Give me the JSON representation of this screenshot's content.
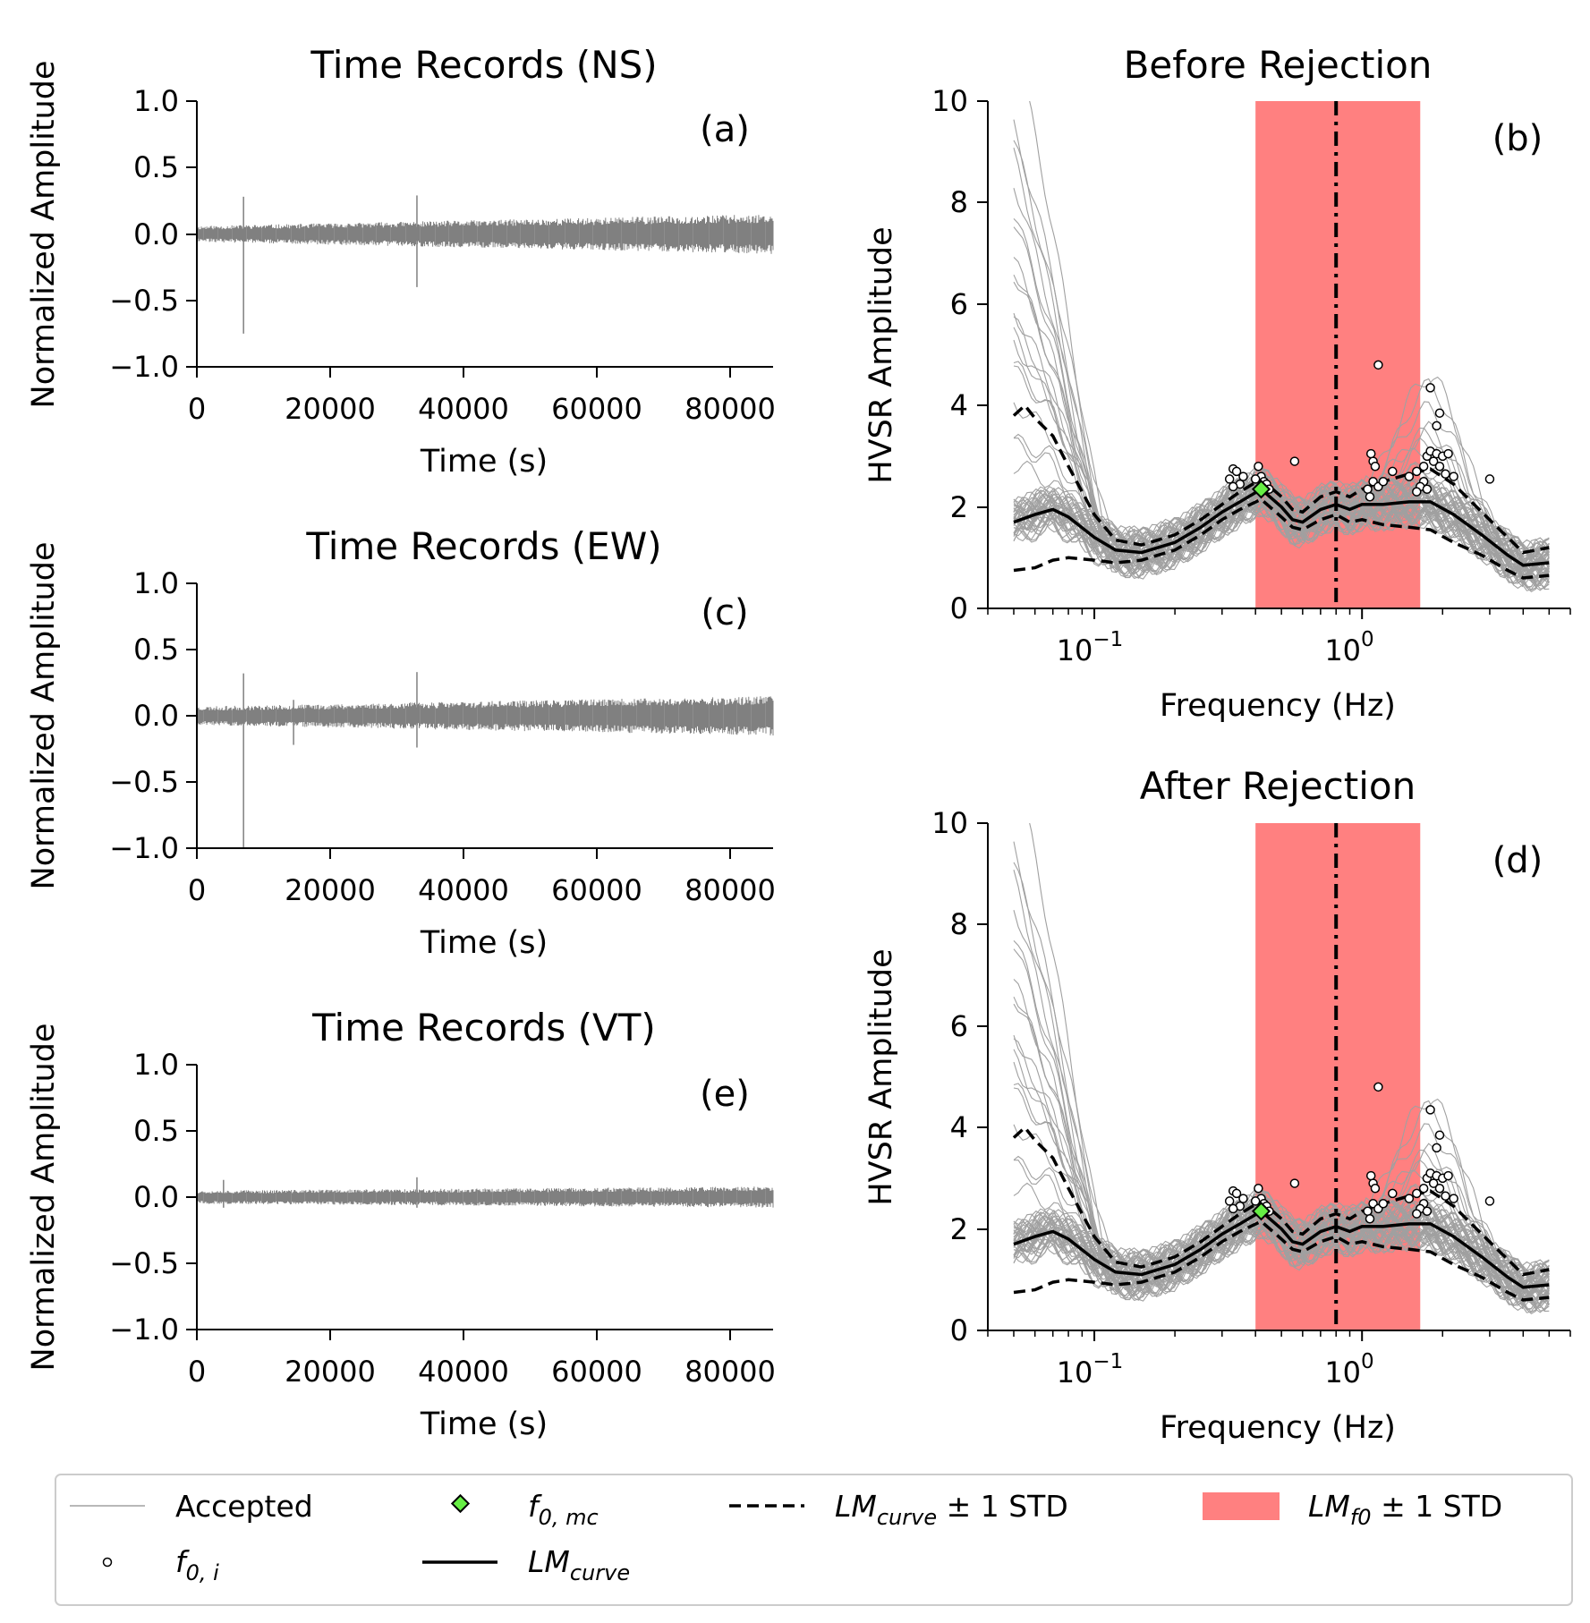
{
  "chart_data": [
    {
      "id": "a",
      "type": "line",
      "title": "Time Records (NS)",
      "panel_label": "(a)",
      "xlabel": "Time (s)",
      "ylabel": "Normalized Amplitude",
      "xlim": [
        0,
        86400
      ],
      "ylim": [
        -1.0,
        1.0
      ],
      "x_ticks": [
        "0",
        "20000",
        "40000",
        "60000",
        "80000"
      ],
      "y_ticks": [
        "1.0",
        "0.5",
        "0.0",
        "−0.5",
        "−1.0"
      ],
      "noise_band_start": 0.06,
      "noise_band_end": 0.15,
      "spikes": [
        {
          "t": 7000,
          "max": 0.28,
          "min": -0.75
        },
        {
          "t": 33000,
          "max": 0.29,
          "min": -0.4
        }
      ]
    },
    {
      "id": "c",
      "type": "line",
      "title": "Time Records (EW)",
      "panel_label": "(c)",
      "xlabel": "Time (s)",
      "ylabel": "Normalized Amplitude",
      "xlim": [
        0,
        86400
      ],
      "ylim": [
        -1.0,
        1.0
      ],
      "x_ticks": [
        "0",
        "20000",
        "40000",
        "60000",
        "80000"
      ],
      "y_ticks": [
        "1.0",
        "0.5",
        "0.0",
        "−0.5",
        "−1.0"
      ],
      "noise_band_start": 0.07,
      "noise_band_end": 0.15,
      "spikes": [
        {
          "t": 7000,
          "max": 0.32,
          "min": -1.0
        },
        {
          "t": 33000,
          "max": 0.33,
          "min": -0.24
        },
        {
          "t": 14500,
          "max": 0.12,
          "min": -0.22
        }
      ]
    },
    {
      "id": "e",
      "type": "line",
      "title": "Time Records (VT)",
      "panel_label": "(e)",
      "xlabel": "Time (s)",
      "ylabel": "Normalized Amplitude",
      "xlim": [
        0,
        86400
      ],
      "ylim": [
        -1.0,
        1.0
      ],
      "x_ticks": [
        "0",
        "20000",
        "40000",
        "60000",
        "80000"
      ],
      "y_ticks": [
        "1.0",
        "0.5",
        "0.0",
        "−0.5",
        "−1.0"
      ],
      "noise_band_start": 0.05,
      "noise_band_end": 0.08,
      "spikes": [
        {
          "t": 4000,
          "max": 0.13,
          "min": -0.08
        },
        {
          "t": 33000,
          "max": 0.15,
          "min": -0.08
        }
      ]
    },
    {
      "id": "b",
      "type": "line",
      "title": "Before Rejection",
      "panel_label": "(b)",
      "xlabel": "Frequency (Hz)",
      "ylabel": "HVSR Amplitude",
      "x_scale": "log",
      "xlim": [
        0.04,
        6.0
      ],
      "ylim": [
        0,
        10
      ],
      "y_ticks": [
        "0",
        "2",
        "4",
        "6",
        "8",
        "10"
      ],
      "x_tick_bases": [
        "10",
        "10"
      ],
      "x_tick_exponents": [
        "−1",
        "0"
      ],
      "lm_f0": 0.8,
      "lm_f0_std_range": [
        0.4,
        1.65
      ],
      "f0_mc": {
        "f": 0.42,
        "amp": 2.35
      },
      "lm_curve": [
        [
          0.05,
          1.7
        ],
        [
          0.06,
          1.85
        ],
        [
          0.07,
          1.95
        ],
        [
          0.08,
          1.8
        ],
        [
          0.1,
          1.4
        ],
        [
          0.12,
          1.15
        ],
        [
          0.15,
          1.1
        ],
        [
          0.2,
          1.3
        ],
        [
          0.25,
          1.6
        ],
        [
          0.3,
          1.9
        ],
        [
          0.35,
          2.1
        ],
        [
          0.42,
          2.35
        ],
        [
          0.5,
          2.0
        ],
        [
          0.55,
          1.75
        ],
        [
          0.6,
          1.7
        ],
        [
          0.7,
          1.95
        ],
        [
          0.8,
          2.05
        ],
        [
          0.9,
          1.95
        ],
        [
          1.0,
          2.05
        ],
        [
          1.2,
          2.05
        ],
        [
          1.5,
          2.1
        ],
        [
          1.8,
          2.1
        ],
        [
          2.2,
          1.85
        ],
        [
          2.8,
          1.45
        ],
        [
          3.5,
          1.05
        ],
        [
          4.0,
          0.85
        ],
        [
          5.0,
          0.9
        ]
      ],
      "lm_curve_plus": [
        [
          0.05,
          3.8
        ],
        [
          0.055,
          4.0
        ],
        [
          0.06,
          3.75
        ],
        [
          0.07,
          3.4
        ],
        [
          0.08,
          2.8
        ],
        [
          0.1,
          1.85
        ],
        [
          0.12,
          1.35
        ],
        [
          0.15,
          1.25
        ],
        [
          0.2,
          1.45
        ],
        [
          0.25,
          1.75
        ],
        [
          0.3,
          2.05
        ],
        [
          0.35,
          2.3
        ],
        [
          0.42,
          2.55
        ],
        [
          0.5,
          2.2
        ],
        [
          0.55,
          1.95
        ],
        [
          0.6,
          1.9
        ],
        [
          0.7,
          2.2
        ],
        [
          0.8,
          2.3
        ],
        [
          0.9,
          2.2
        ],
        [
          1.0,
          2.35
        ],
        [
          1.2,
          2.5
        ],
        [
          1.5,
          2.65
        ],
        [
          1.8,
          2.75
        ],
        [
          2.2,
          2.45
        ],
        [
          2.8,
          1.9
        ],
        [
          3.5,
          1.4
        ],
        [
          4.0,
          1.1
        ],
        [
          5.0,
          1.2
        ]
      ],
      "lm_curve_minus": [
        [
          0.05,
          0.75
        ],
        [
          0.06,
          0.8
        ],
        [
          0.07,
          0.95
        ],
        [
          0.08,
          1.0
        ],
        [
          0.1,
          0.95
        ],
        [
          0.12,
          0.9
        ],
        [
          0.15,
          0.95
        ],
        [
          0.2,
          1.15
        ],
        [
          0.25,
          1.45
        ],
        [
          0.3,
          1.75
        ],
        [
          0.35,
          1.95
        ],
        [
          0.42,
          2.15
        ],
        [
          0.5,
          1.8
        ],
        [
          0.55,
          1.6
        ],
        [
          0.6,
          1.55
        ],
        [
          0.7,
          1.75
        ],
        [
          0.8,
          1.85
        ],
        [
          0.9,
          1.7
        ],
        [
          1.0,
          1.75
        ],
        [
          1.2,
          1.65
        ],
        [
          1.5,
          1.6
        ],
        [
          1.8,
          1.55
        ],
        [
          2.2,
          1.3
        ],
        [
          2.8,
          1.05
        ],
        [
          3.5,
          0.75
        ],
        [
          4.0,
          0.6
        ],
        [
          5.0,
          0.65
        ]
      ],
      "f0_i": [
        [
          0.33,
          2.75
        ],
        [
          0.34,
          2.7
        ],
        [
          0.32,
          2.55
        ],
        [
          0.35,
          2.45
        ],
        [
          0.33,
          2.4
        ],
        [
          0.36,
          2.6
        ],
        [
          0.41,
          2.8
        ],
        [
          0.42,
          2.6
        ],
        [
          0.43,
          2.5
        ],
        [
          0.44,
          2.45
        ],
        [
          0.4,
          2.55
        ],
        [
          0.45,
          2.35
        ],
        [
          0.56,
          2.9
        ],
        [
          1.08,
          3.05
        ],
        [
          1.1,
          2.9
        ],
        [
          1.12,
          2.8
        ],
        [
          1.1,
          2.5
        ],
        [
          1.15,
          2.4
        ],
        [
          1.05,
          2.35
        ],
        [
          1.07,
          2.2
        ],
        [
          1.2,
          2.5
        ],
        [
          1.15,
          4.8
        ],
        [
          1.3,
          2.7
        ],
        [
          1.5,
          2.6
        ],
        [
          1.6,
          2.7
        ],
        [
          1.7,
          2.8
        ],
        [
          1.75,
          3.0
        ],
        [
          1.8,
          3.1
        ],
        [
          1.85,
          2.9
        ],
        [
          1.9,
          3.05
        ],
        [
          1.95,
          2.8
        ],
        [
          2.0,
          3.0
        ],
        [
          2.05,
          2.65
        ],
        [
          1.7,
          2.5
        ],
        [
          1.65,
          2.4
        ],
        [
          1.6,
          2.3
        ],
        [
          1.75,
          2.35
        ],
        [
          1.8,
          4.35
        ],
        [
          1.9,
          3.6
        ],
        [
          1.95,
          3.85
        ],
        [
          2.1,
          3.05
        ],
        [
          2.2,
          2.6
        ],
        [
          3.0,
          2.55
        ]
      ],
      "window_count": 60
    },
    {
      "id": "d",
      "type": "line",
      "title": "After Rejection",
      "panel_label": "(d)",
      "xlabel": "Frequency (Hz)",
      "ylabel": "HVSR Amplitude",
      "x_scale": "log",
      "xlim": [
        0.04,
        6.0
      ],
      "ylim": [
        0,
        10
      ],
      "y_ticks": [
        "0",
        "2",
        "4",
        "6",
        "8",
        "10"
      ],
      "x_tick_bases": [
        "10",
        "10"
      ],
      "x_tick_exponents": [
        "−1",
        "0"
      ],
      "lm_f0": 0.8,
      "lm_f0_std_range": [
        0.4,
        1.65
      ],
      "f0_mc": {
        "f": 0.42,
        "amp": 2.35
      },
      "same_curves_as": "b",
      "window_count": 60
    }
  ],
  "legend": {
    "accepted": "Accepted",
    "f0i_base": "f",
    "f0i_sub": "0, i",
    "f0mc_base": "f",
    "f0mc_sub": "0, mc",
    "lmcurve_base": "LM",
    "lmcurve_sub": "curve",
    "lmcurve_std_base": "LM",
    "lmcurve_std_sub": "curve",
    "lmcurve_std_suffix": " ± 1 STD",
    "lmf0_base": "LM",
    "lmf0_sub": "f0",
    "lmf0_suffix": " ± 1 STD"
  },
  "colors": {
    "trace": "#808080",
    "window": "#a0a0a0",
    "band": "#ff8080",
    "marker_fill": "#66ee44",
    "axes": "#000000"
  }
}
